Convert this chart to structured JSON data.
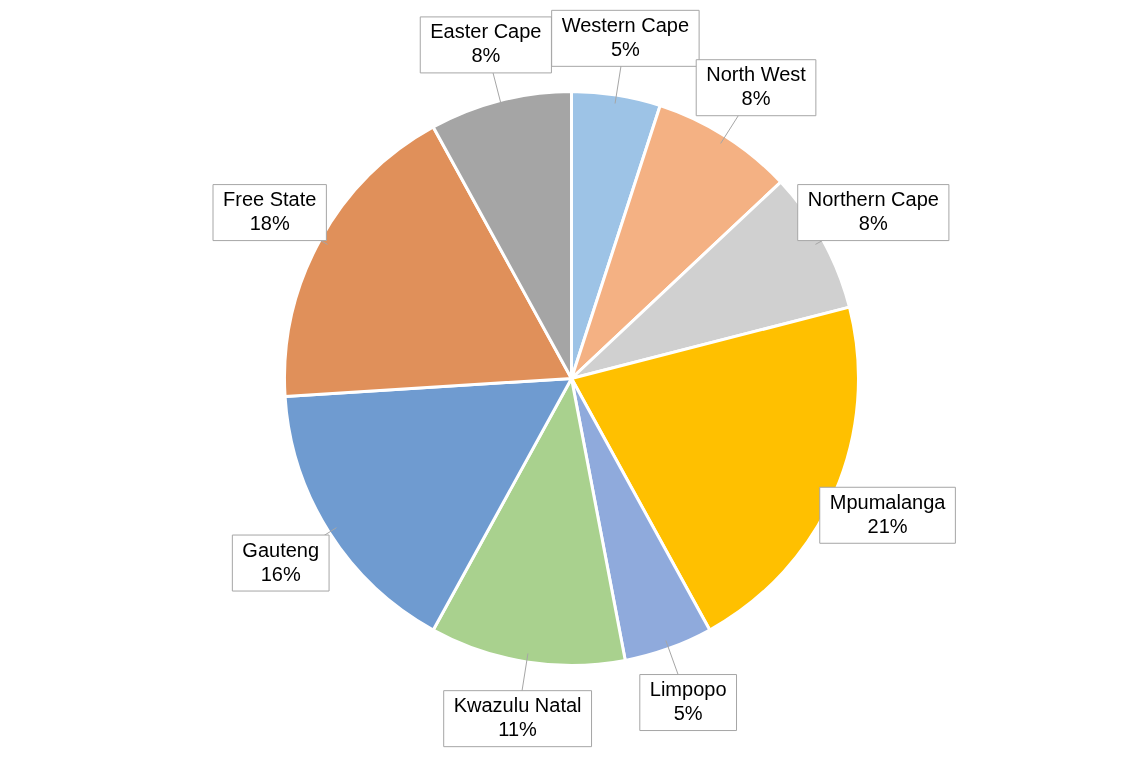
{
  "chart_data": {
    "type": "pie",
    "categories": [
      "Western Cape",
      "North West",
      "Northern Cape",
      "Mpumalanga",
      "Limpopo",
      "Kwazulu Natal",
      "Gauteng",
      "Free State",
      "Easter Cape"
    ],
    "values": [
      5,
      8,
      8,
      21,
      5,
      11,
      16,
      18,
      8
    ],
    "value_labels": [
      "5%",
      "8%",
      "8%",
      "21%",
      "5%",
      "11%",
      "16%",
      "18%",
      "8%"
    ],
    "colors": [
      "#9dc3e6",
      "#f4b183",
      "#d0d0d0",
      "#ffc000",
      "#8faadc",
      "#a9d18e",
      "#6f9bd0",
      "#e0905a",
      "#a5a5a5"
    ],
    "legend": false
  }
}
